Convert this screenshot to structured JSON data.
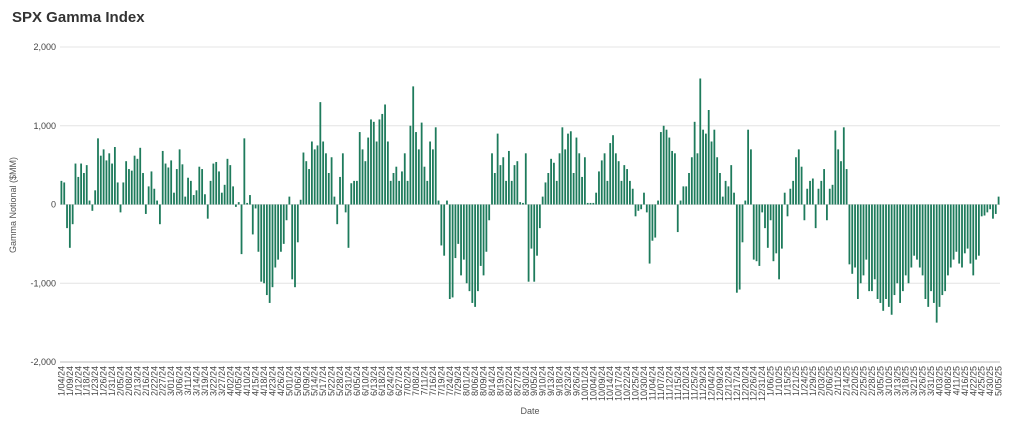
{
  "chart_data": {
    "type": "bar",
    "title": "SPX Gamma Index",
    "y_label": "Gamma Notional ($MM)",
    "x_label": "Date",
    "color": "#1e7b5c",
    "grid": true,
    "ylim": [
      -2000,
      2000
    ],
    "yticks": [
      {
        "value": -2000,
        "label": "-2,000"
      },
      {
        "value": -1000,
        "label": "-1,000"
      },
      0,
      {
        "value": 1000,
        "label": "1,000"
      },
      {
        "value": 2000,
        "label": "2,000"
      }
    ],
    "categories": [
      "1/04/24",
      null,
      null,
      "1/09/24",
      null,
      null,
      "1/12/24",
      null,
      null,
      "1/18/24",
      null,
      null,
      "1/23/24",
      null,
      null,
      "1/26/24",
      null,
      null,
      "1/31/24",
      null,
      null,
      "2/05/24",
      null,
      null,
      "2/08/24",
      null,
      null,
      "2/13/24",
      null,
      null,
      "2/16/24",
      null,
      null,
      "2/22/24",
      null,
      null,
      "2/27/24",
      null,
      null,
      "3/01/24",
      null,
      null,
      "3/06/24",
      null,
      null,
      "3/11/24",
      null,
      null,
      "3/14/24",
      null,
      null,
      "3/19/24",
      null,
      null,
      "3/22/24",
      null,
      null,
      "3/27/24",
      null,
      null,
      "4/02/24",
      null,
      null,
      "4/05/24",
      null,
      null,
      "4/10/24",
      null,
      null,
      "4/15/24",
      null,
      null,
      "4/18/24",
      null,
      null,
      "4/23/24",
      null,
      null,
      "4/26/24",
      null,
      null,
      "5/01/24",
      null,
      null,
      "5/06/24",
      null,
      null,
      "5/09/24",
      null,
      null,
      "5/14/24",
      null,
      null,
      "5/17/24",
      null,
      null,
      "5/22/24",
      null,
      null,
      "5/28/24",
      null,
      null,
      "5/31/24",
      null,
      null,
      "6/05/24",
      null,
      null,
      "6/10/24",
      null,
      null,
      "6/13/24",
      null,
      null,
      "6/18/24",
      null,
      null,
      "6/24/24",
      null,
      null,
      "6/27/24",
      null,
      null,
      "7/02/24",
      null,
      null,
      "7/08/24",
      null,
      null,
      "7/11/24",
      null,
      null,
      "7/16/24",
      null,
      null,
      "7/19/24",
      null,
      null,
      "7/24/24",
      null,
      null,
      "7/29/24",
      null,
      null,
      "8/01/24",
      null,
      null,
      "8/06/24",
      null,
      null,
      "8/09/24",
      null,
      null,
      "8/14/24",
      null,
      null,
      "8/19/24",
      null,
      null,
      "8/22/24",
      null,
      null,
      "8/27/24",
      null,
      null,
      "8/30/24",
      null,
      null,
      "9/05/24",
      null,
      null,
      "9/10/24",
      null,
      null,
      "9/13/24",
      null,
      null,
      "9/18/24",
      null,
      null,
      "9/23/24",
      null,
      null,
      "9/26/24",
      null,
      null,
      "10/01/24",
      null,
      null,
      "10/04/24",
      null,
      null,
      "10/09/24",
      null,
      null,
      "10/14/24",
      null,
      null,
      "10/17/24",
      null,
      null,
      "10/22/24",
      null,
      null,
      "10/25/24",
      null,
      null,
      "10/30/24",
      null,
      null,
      "11/04/24",
      null,
      null,
      "11/07/24",
      null,
      null,
      "11/12/24",
      null,
      null,
      "11/15/24",
      null,
      null,
      "11/20/24",
      null,
      null,
      "11/25/24",
      null,
      null,
      "11/29/24",
      null,
      null,
      "12/04/24",
      null,
      null,
      "12/09/24",
      null,
      null,
      "12/12/24",
      null,
      null,
      "12/17/24",
      null,
      null,
      "12/20/24",
      null,
      null,
      "12/26/24",
      null,
      null,
      "12/31/24",
      null,
      null,
      "1/06/25",
      null,
      null,
      "1/10/25",
      null,
      null,
      "1/15/25",
      null,
      null,
      "1/21/25",
      null,
      null,
      "1/24/25",
      null,
      null,
      "1/29/25",
      null,
      null,
      "2/03/25",
      null,
      null,
      "2/06/25",
      null,
      null,
      "2/11/25",
      null,
      null,
      "2/14/25",
      null,
      null,
      "2/20/25",
      null,
      null,
      "2/25/25",
      null,
      null,
      "2/28/25",
      null,
      null,
      "3/05/25",
      null,
      null,
      "3/10/25",
      null,
      null,
      "3/13/25",
      null,
      null,
      "3/18/25",
      null,
      null,
      "3/21/25",
      null,
      null,
      "3/26/25",
      null,
      null,
      "3/31/25",
      null,
      null,
      "4/03/25",
      null,
      null,
      "4/08/25",
      null,
      null,
      "4/11/25",
      null,
      null,
      "4/16/25",
      null,
      null,
      "4/22/25",
      null,
      null,
      "4/25/25",
      null,
      null,
      "4/30/25",
      null,
      null,
      "5/05/25"
    ],
    "values": [
      300,
      280,
      -300,
      -550,
      -250,
      520,
      350,
      520,
      400,
      500,
      50,
      -80,
      180,
      840,
      620,
      700,
      560,
      650,
      520,
      730,
      280,
      -100,
      280,
      550,
      450,
      430,
      620,
      580,
      720,
      400,
      -120,
      230,
      420,
      200,
      50,
      -250,
      680,
      520,
      470,
      560,
      150,
      450,
      700,
      510,
      100,
      340,
      300,
      120,
      180,
      480,
      450,
      130,
      -180,
      300,
      520,
      540,
      420,
      150,
      250,
      580,
      500,
      230,
      -30,
      30,
      -630,
      840,
      20,
      120,
      -380,
      -50,
      -600,
      -980,
      -1000,
      -1150,
      -1250,
      -1050,
      -800,
      -700,
      -600,
      -500,
      -200,
      100,
      -950,
      -1050,
      -480,
      60,
      660,
      550,
      450,
      800,
      700,
      750,
      1300,
      800,
      650,
      400,
      600,
      100,
      -250,
      350,
      650,
      -100,
      -550,
      270,
      300,
      300,
      920,
      700,
      550,
      850,
      1080,
      1050,
      800,
      1080,
      1150,
      1270,
      800,
      300,
      400,
      480,
      300,
      420,
      650,
      300,
      1000,
      1500,
      920,
      700,
      1040,
      480,
      300,
      800,
      700,
      980,
      50,
      -520,
      -650,
      50,
      -1200,
      -1180,
      -680,
      -500,
      -900,
      -700,
      -1000,
      -1100,
      -1250,
      -1300,
      -1100,
      -780,
      -900,
      -600,
      -200,
      650,
      400,
      900,
      500,
      600,
      300,
      680,
      300,
      500,
      550,
      30,
      20,
      650,
      -980,
      -560,
      -980,
      -650,
      -300,
      100,
      280,
      400,
      580,
      530,
      300,
      650,
      980,
      700,
      900,
      930,
      400,
      850,
      650,
      350,
      600,
      20,
      20,
      20,
      150,
      420,
      560,
      650,
      300,
      780,
      880,
      650,
      550,
      300,
      500,
      450,
      300,
      200,
      -150,
      -80,
      -60,
      150,
      -100,
      -750,
      -460,
      -420,
      50,
      920,
      1000,
      950,
      850,
      680,
      650,
      -350,
      50,
      230,
      230,
      400,
      600,
      1050,
      650,
      1600,
      950,
      900,
      1200,
      800,
      950,
      600,
      400,
      100,
      300,
      230,
      500,
      150,
      -1120,
      -1080,
      -480,
      50,
      950,
      700,
      -700,
      -720,
      -780,
      -100,
      -300,
      -550,
      -200,
      -720,
      -620,
      -950,
      -560,
      150,
      -150,
      200,
      300,
      600,
      700,
      480,
      -200,
      200,
      300,
      330,
      -300,
      200,
      300,
      450,
      -200,
      200,
      250,
      940,
      700,
      550,
      980,
      450,
      -760,
      -880,
      -800,
      -1200,
      -1000,
      -900,
      -700,
      -1100,
      -1100,
      -950,
      -1200,
      -1250,
      -1350,
      -1200,
      -1300,
      -1400,
      -1150,
      -1000,
      -1250,
      -1100,
      -900,
      -1000,
      -800,
      -650,
      -700,
      -800,
      -900,
      -1200,
      -1300,
      -1100,
      -1250,
      -1500,
      -1300,
      -1150,
      -1100,
      -900,
      -800,
      -700,
      -600,
      -750,
      -800,
      -620,
      -560,
      -750,
      -900,
      -700,
      -650,
      -150,
      -140,
      -100,
      -60,
      -180,
      -120,
      100
    ]
  }
}
